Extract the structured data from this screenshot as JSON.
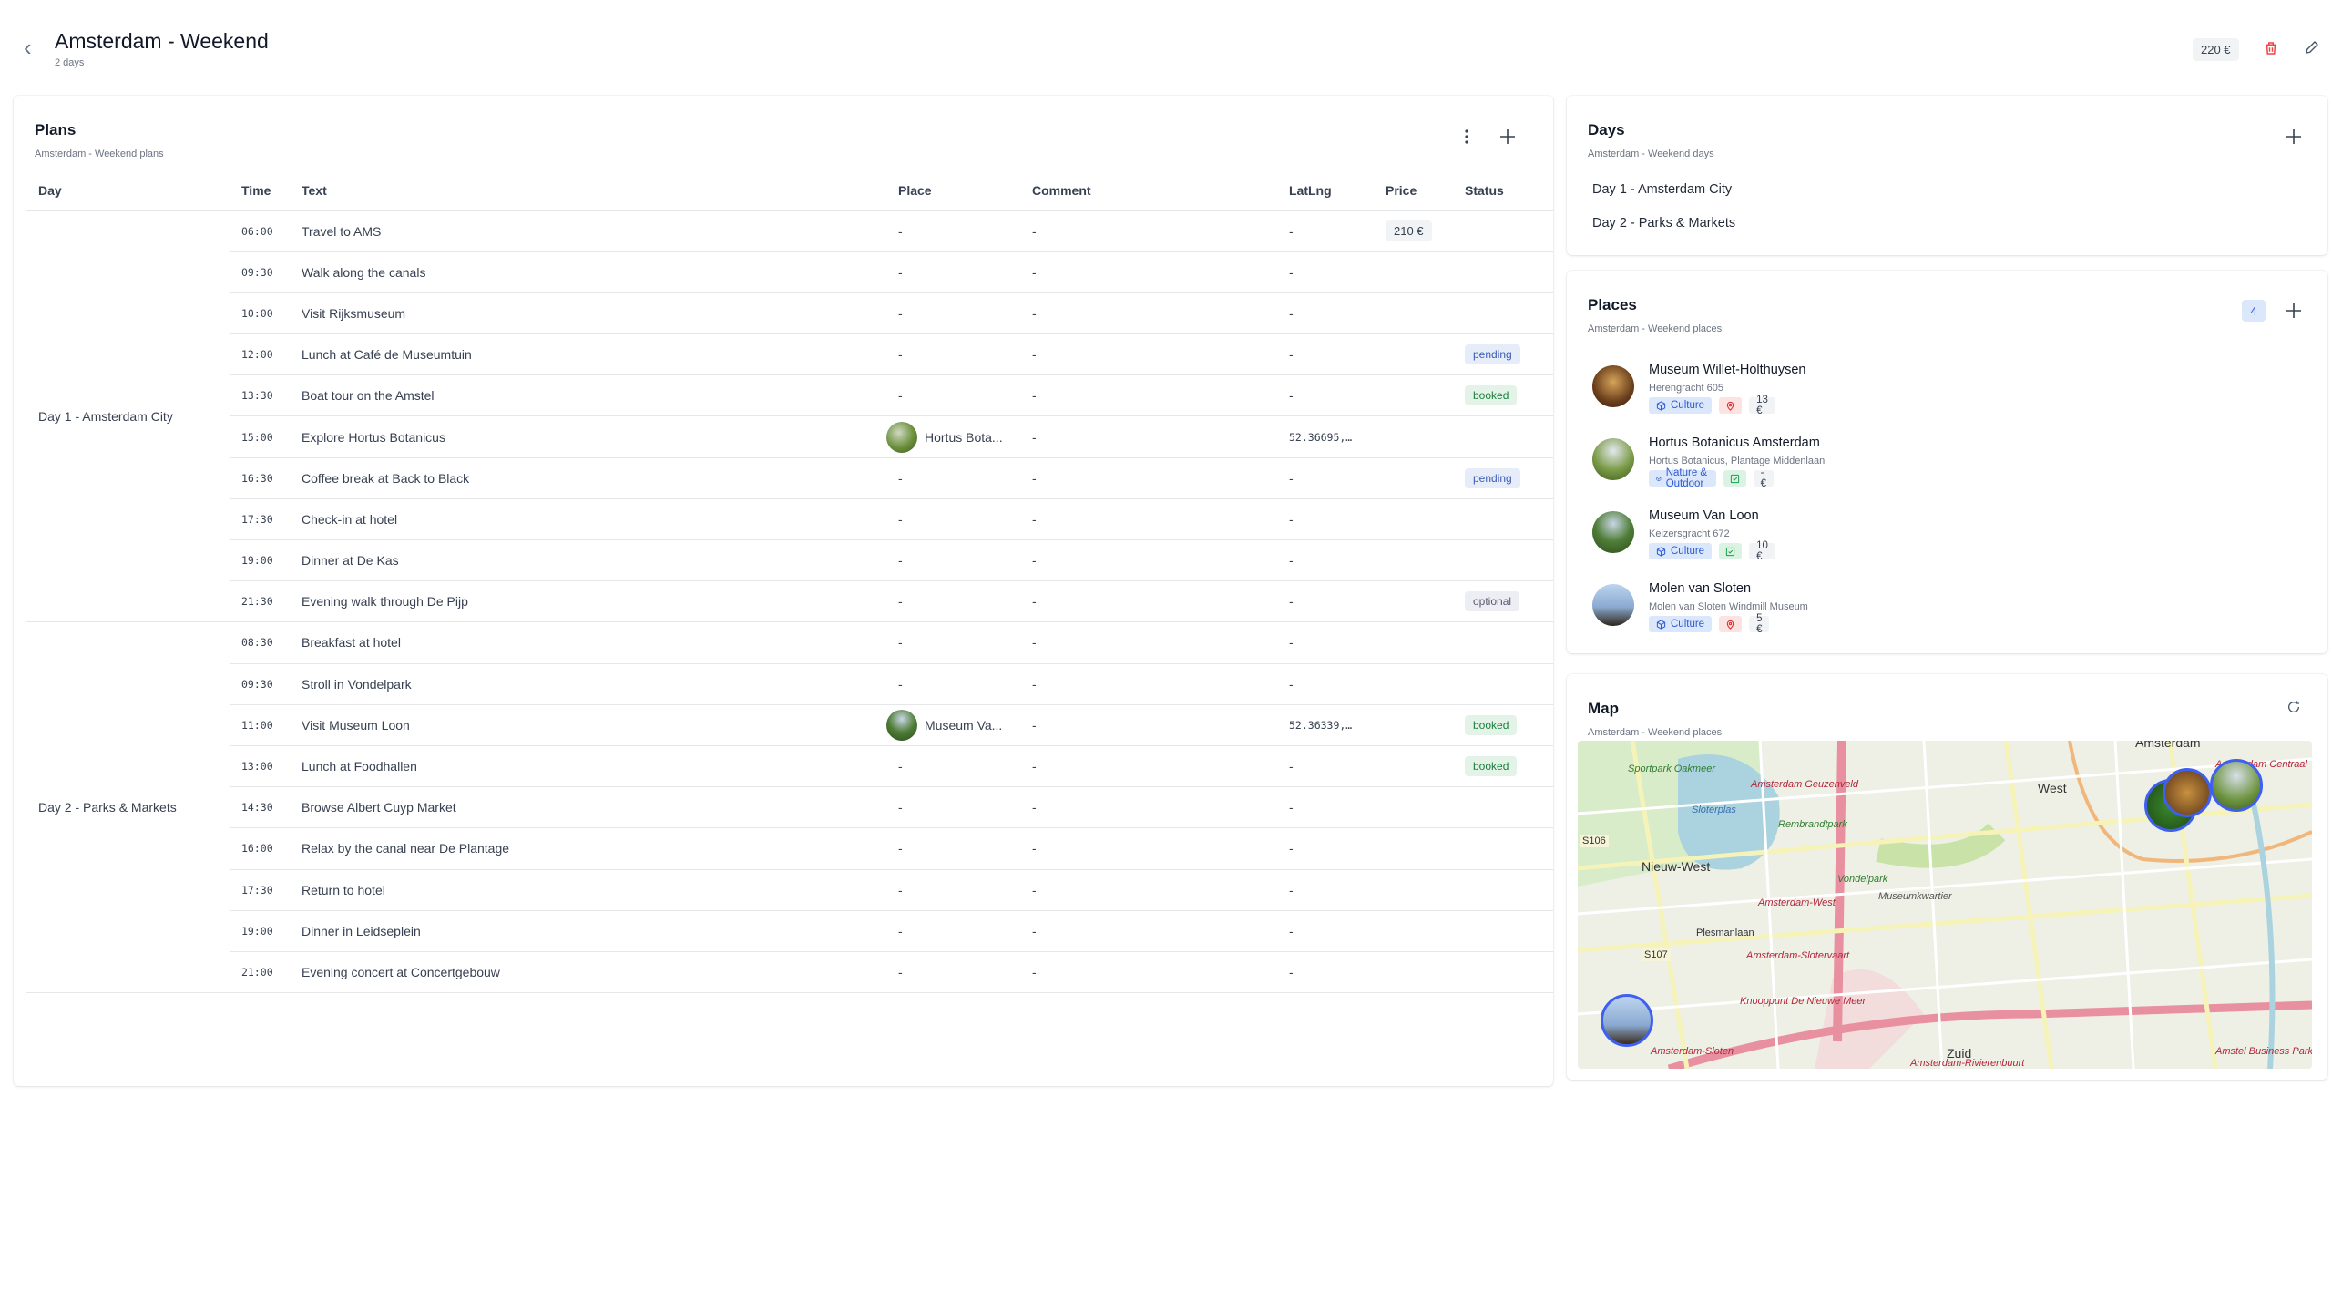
{
  "header": {
    "title": "Amsterdam - Weekend",
    "subtitle": "2 days",
    "total_price": "220 €",
    "back_icon": "chevron-left-icon",
    "delete_icon": "trash-icon",
    "edit_icon": "pencil-icon"
  },
  "colors": {
    "accent": "#2f5bd3",
    "danger": "#ef4444",
    "booked": "#1a7f3c",
    "pending": "#3b5bb5"
  },
  "plans": {
    "title": "Plans",
    "subtitle": "Amsterdam - Weekend plans",
    "columns": [
      "Day",
      "Time",
      "Text",
      "Place",
      "Comment",
      "LatLng",
      "Price",
      "Status"
    ],
    "groups": [
      {
        "day": "Day 1 - Amsterdam City",
        "rows": [
          {
            "time": "06:00",
            "text": "Travel to AMS",
            "place": "-",
            "comment": "-",
            "latlng": "-",
            "price": "210 €",
            "status": ""
          },
          {
            "time": "09:30",
            "text": "Walk along the canals",
            "place": "-",
            "comment": "-",
            "latlng": "-",
            "price": "",
            "status": ""
          },
          {
            "time": "10:00",
            "text": "Visit Rijksmuseum",
            "place": "-",
            "comment": "-",
            "latlng": "-",
            "price": "",
            "status": ""
          },
          {
            "time": "12:00",
            "text": "Lunch at Café de Museumtuin",
            "place": "-",
            "comment": "-",
            "latlng": "-",
            "price": "",
            "status": "pending"
          },
          {
            "time": "13:30",
            "text": "Boat tour on the Amstel",
            "place": "-",
            "comment": "-",
            "latlng": "-",
            "price": "",
            "status": "booked"
          },
          {
            "time": "15:00",
            "text": "Explore Hortus Botanicus",
            "place": "Hortus Bota...",
            "comment": "-",
            "latlng": "52.36695,…",
            "price": "",
            "status": ""
          },
          {
            "time": "16:30",
            "text": "Coffee break at Back to Black",
            "place": "-",
            "comment": "-",
            "latlng": "-",
            "price": "",
            "status": "pending"
          },
          {
            "time": "17:30",
            "text": "Check-in at hotel",
            "place": "-",
            "comment": "-",
            "latlng": "-",
            "price": "",
            "status": ""
          },
          {
            "time": "19:00",
            "text": "Dinner at De Kas",
            "place": "-",
            "comment": "-",
            "latlng": "-",
            "price": "",
            "status": ""
          },
          {
            "time": "21:30",
            "text": "Evening walk through De Pijp",
            "place": "-",
            "comment": "-",
            "latlng": "-",
            "price": "",
            "status": "optional"
          }
        ]
      },
      {
        "day": "Day 2 - Parks & Markets",
        "rows": [
          {
            "time": "08:30",
            "text": "Breakfast at hotel",
            "place": "-",
            "comment": "-",
            "latlng": "-",
            "price": "",
            "status": ""
          },
          {
            "time": "09:30",
            "text": "Stroll in Vondelpark",
            "place": "-",
            "comment": "-",
            "latlng": "-",
            "price": "",
            "status": ""
          },
          {
            "time": "11:00",
            "text": "Visit Museum Loon",
            "place": "Museum Va...",
            "comment": "-",
            "latlng": "52.36339,…",
            "price": "",
            "status": "booked"
          },
          {
            "time": "13:00",
            "text": "Lunch at Foodhallen",
            "place": "-",
            "comment": "-",
            "latlng": "-",
            "price": "",
            "status": "booked"
          },
          {
            "time": "14:30",
            "text": "Browse Albert Cuyp Market",
            "place": "-",
            "comment": "-",
            "latlng": "-",
            "price": "",
            "status": ""
          },
          {
            "time": "16:00",
            "text": "Relax by the canal near De Plantage",
            "place": "-",
            "comment": "-",
            "latlng": "-",
            "price": "",
            "status": ""
          },
          {
            "time": "17:30",
            "text": "Return to hotel",
            "place": "-",
            "comment": "-",
            "latlng": "-",
            "price": "",
            "status": ""
          },
          {
            "time": "19:00",
            "text": "Dinner in Leidseplein",
            "place": "-",
            "comment": "-",
            "latlng": "-",
            "price": "",
            "status": ""
          },
          {
            "time": "21:00",
            "text": "Evening concert at Concertgebouw",
            "place": "-",
            "comment": "-",
            "latlng": "-",
            "price": "",
            "status": ""
          }
        ]
      }
    ]
  },
  "days": {
    "title": "Days",
    "subtitle": "Amsterdam - Weekend days",
    "items": [
      "Day 1 - Amsterdam City",
      "Day 2 - Parks & Markets"
    ]
  },
  "places": {
    "title": "Places",
    "subtitle": "Amsterdam - Weekend places",
    "count": "4",
    "items": [
      {
        "name": "Museum Willet-Holthuysen",
        "address": "Herengracht 605",
        "category": "Culture",
        "visited": false,
        "price": "13 €"
      },
      {
        "name": "Hortus Botanicus Amsterdam",
        "address": "Hortus Botanicus, Plantage Middenlaan",
        "category": "Nature & Outdoor",
        "visited": true,
        "price": "- €"
      },
      {
        "name": "Museum Van Loon",
        "address": "Keizersgracht 672",
        "category": "Culture",
        "visited": true,
        "price": "10 €"
      },
      {
        "name": "Molen van Sloten",
        "address": "Molen van Sloten Windmill Museum",
        "category": "Culture",
        "visited": false,
        "price": "5 €"
      }
    ]
  },
  "map": {
    "title": "Map",
    "subtitle": "Amsterdam - Weekend places",
    "labels": [
      "Amsterdam",
      "Amsterdam Centraal",
      "West",
      "Nieuw-West",
      "Vondelpark",
      "Rembrandtpark",
      "Sloterplas",
      "Amsterdam Geuzenveld",
      "Amsterdam-West",
      "Amsterdam-Slotervaart",
      "Knooppunt De Nieuwe Meer",
      "Museumkwartier",
      "Zuid",
      "Amsterdam-Sloten",
      "Amstel Business Park",
      "Amsterdam-Rivierenbuurt",
      "S106",
      "S107",
      "Sportpark Oakmeer",
      "Plesmanlaan"
    ]
  }
}
